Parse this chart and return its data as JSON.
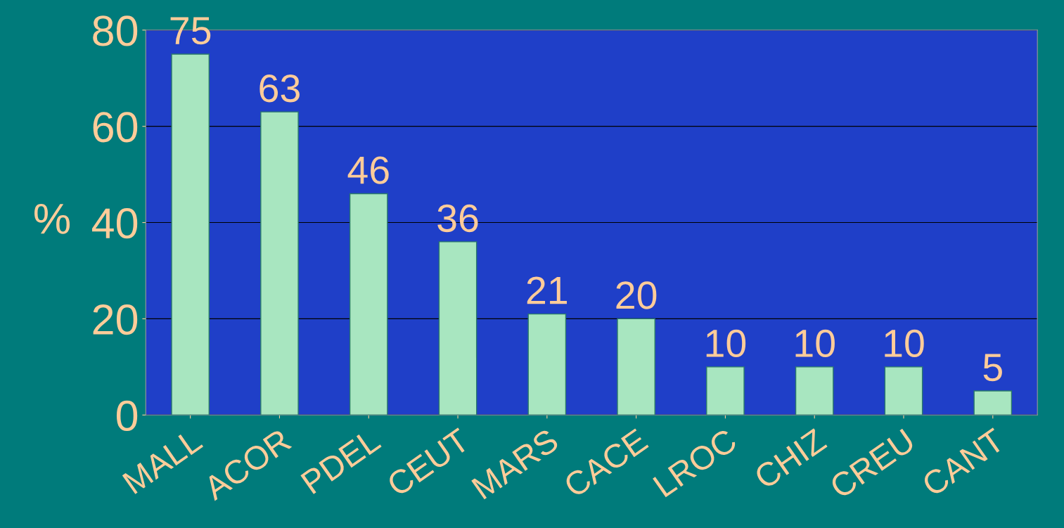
{
  "chart_data": {
    "type": "bar",
    "ylabel": "%",
    "categories": [
      "MALL",
      "ACOR",
      "PDEL",
      "CEUT",
      "MARS",
      "CACE",
      "LROC",
      "CHIZ",
      "CREU",
      "CANT"
    ],
    "values": [
      75,
      63,
      46,
      36,
      21,
      20,
      10,
      10,
      10,
      5
    ],
    "color": "#a8e6c0",
    "ylim": [
      0,
      80
    ],
    "yticks": [
      0,
      20,
      40,
      60,
      80
    ],
    "grid": "y",
    "data_labels": true
  }
}
